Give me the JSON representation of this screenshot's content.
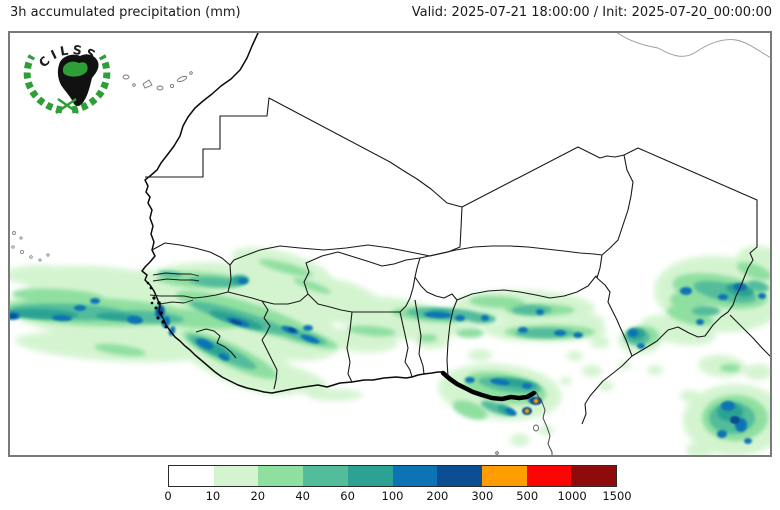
{
  "header": {
    "title": "3h accumulated precipitation (mm)",
    "validity": "Valid: 2025-07-21 18:00:00 / Init: 2025-07-20_00:00:00"
  },
  "logo": {
    "text": "CILSS"
  },
  "colorbar": {
    "ticks": [
      "0",
      "10",
      "20",
      "40",
      "60",
      "100",
      "200",
      "300",
      "500",
      "1000",
      "1500"
    ],
    "colors": [
      "#ffffff",
      "#d4f4d0",
      "#8fdfa0",
      "#52bc9b",
      "#2ba293",
      "#0e73b5",
      "#0d4d94",
      "#ff9c00",
      "#fa0404",
      "#8d0b0b"
    ]
  },
  "map": {
    "palette": {
      "land": "#ffffff",
      "border": "#1a1a1a",
      "coast": "#000000",
      "frame": "#7a7a7a",
      "wreath_green": "#2e9e36"
    }
  }
}
